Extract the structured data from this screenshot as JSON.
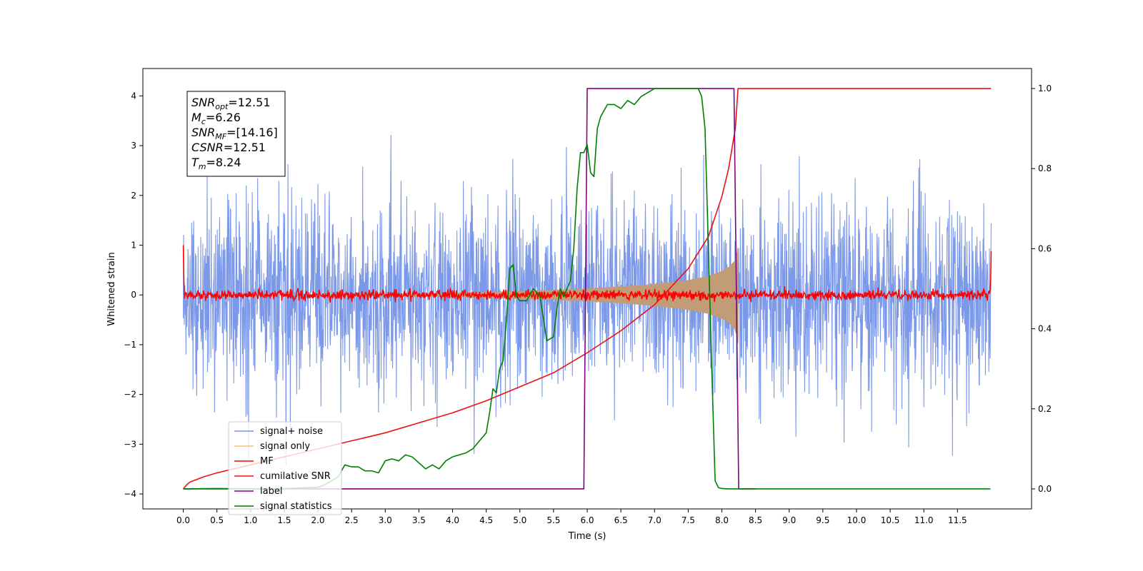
{
  "chart_data": {
    "type": "line",
    "xlabel": "Time (s)",
    "ylabel": "Whitened strain",
    "xlim": [
      -0.6,
      12.6
    ],
    "ylim": [
      -4.3,
      4.55
    ],
    "y2lim": [
      -0.05,
      1.05
    ],
    "x_ticks": [
      0.0,
      0.5,
      1.0,
      1.5,
      2.0,
      2.5,
      3.0,
      3.5,
      4.0,
      4.5,
      5.0,
      5.5,
      6.0,
      6.5,
      7.0,
      7.5,
      8.0,
      8.5,
      9.0,
      9.5,
      10.0,
      10.5,
      11.0,
      11.5
    ],
    "x_tick_labels": [
      "0.0",
      "0.5",
      "1.0",
      "1.5",
      "2.0",
      "2.5",
      "3.0",
      "3.5",
      "4.0",
      "4.5",
      "5.0",
      "5.5",
      "6.0",
      "6.5",
      "7.0",
      "7.5",
      "8.0",
      "8.5",
      "9.0",
      "9.5",
      "10.0",
      "10.5",
      "11.0",
      "11.5"
    ],
    "y_ticks": [
      -4,
      -3,
      -2,
      -1,
      0,
      1,
      2,
      3,
      4
    ],
    "y_tick_labels": [
      "−4",
      "−3",
      "−2",
      "−1",
      "0",
      "1",
      "2",
      "3",
      "4"
    ],
    "y2_ticks": [
      0.0,
      0.2,
      0.4,
      0.6,
      0.8,
      1.0
    ],
    "y2_tick_labels": [
      "0.0",
      "0.2",
      "0.4",
      "0.6",
      "0.8",
      "1.0"
    ],
    "grid": false,
    "legend_placement": "lower-left",
    "annotations": [
      {
        "base": "SNR",
        "sub": "opt",
        "rest": "=12.51"
      },
      {
        "base": "M",
        "sub": "c",
        "rest": "=6.26"
      },
      {
        "base": "SNR",
        "sub": "MF",
        "rest": "=[14.16]"
      },
      {
        "base": "CSNR",
        "sub": "",
        "rest": "=12.51"
      },
      {
        "base": "T",
        "sub": "m",
        "rest": "=8.24"
      }
    ],
    "series": [
      {
        "name": "signal+ noise",
        "axis": "left",
        "color": "#7593e8",
        "description_type": "white-noise",
        "x_range": [
          0.0,
          12.0
        ],
        "approx_std": 1.0,
        "visible_min": -3.85,
        "visible_max": 4.1
      },
      {
        "name": "signal only",
        "axis": "left",
        "color": "#f6c27a",
        "fill_color": "#c19c77",
        "x": [
          0.0,
          2.0,
          3.0,
          4.0,
          5.0,
          5.5,
          6.0,
          6.5,
          7.0,
          7.5,
          7.8,
          8.0,
          8.1,
          8.2,
          8.24
        ],
        "amplitude": [
          0.0,
          0.01,
          0.02,
          0.04,
          0.08,
          0.1,
          0.13,
          0.17,
          0.22,
          0.3,
          0.38,
          0.48,
          0.56,
          0.7,
          1.0
        ]
      },
      {
        "name": "MF",
        "axis": "left",
        "color": "#ff0000",
        "description_type": "noise",
        "x_range": [
          0.0,
          12.0
        ],
        "approx_std": 0.05,
        "edge_values": [
          1.0,
          0.88
        ]
      },
      {
        "name": "cumilative SNR",
        "axis": "right",
        "color": "#ee1111",
        "x": [
          0.0,
          0.05,
          0.1,
          0.3,
          0.5,
          1.0,
          1.5,
          2.0,
          2.5,
          3.0,
          3.5,
          4.0,
          4.5,
          5.0,
          5.5,
          6.0,
          6.5,
          7.0,
          7.5,
          7.8,
          8.0,
          8.1,
          8.2,
          8.24,
          8.5,
          9.0,
          10.0,
          11.0,
          11.5,
          12.0
        ],
        "values": [
          0.0,
          0.01,
          0.017,
          0.03,
          0.04,
          0.06,
          0.08,
          0.1,
          0.12,
          0.14,
          0.165,
          0.19,
          0.22,
          0.255,
          0.29,
          0.34,
          0.395,
          0.46,
          0.55,
          0.63,
          0.73,
          0.8,
          0.9,
          1.0,
          1.0,
          1.0,
          1.0,
          1.0,
          1.0,
          1.0
        ]
      },
      {
        "name": "label",
        "axis": "right",
        "color": "#800080",
        "x": [
          0.0,
          5.95,
          5.95,
          6.0,
          8.18,
          8.25,
          8.25,
          8.5
        ],
        "values": [
          0.0,
          0.0,
          0.0,
          1.0,
          1.0,
          0.0,
          0.0,
          0.0
        ]
      },
      {
        "name": "signal statistics",
        "axis": "right",
        "color": "#008000",
        "x": [
          0.0,
          0.5,
          1.0,
          1.5,
          2.0,
          2.1,
          2.2,
          2.3,
          2.4,
          2.5,
          2.6,
          2.7,
          2.8,
          2.9,
          3.0,
          3.1,
          3.2,
          3.3,
          3.4,
          3.5,
          3.6,
          3.7,
          3.8,
          3.9,
          4.0,
          4.1,
          4.2,
          4.3,
          4.4,
          4.5,
          4.55,
          4.6,
          4.65,
          4.7,
          4.75,
          4.8,
          4.85,
          4.9,
          4.95,
          5.0,
          5.1,
          5.2,
          5.3,
          5.4,
          5.5,
          5.55,
          5.6,
          5.65,
          5.7,
          5.75,
          5.8,
          5.85,
          5.9,
          5.95,
          6.0,
          6.05,
          6.1,
          6.15,
          6.2,
          6.3,
          6.4,
          6.5,
          6.6,
          6.7,
          6.8,
          6.9,
          7.0,
          7.1,
          7.2,
          7.3,
          7.4,
          7.5,
          7.6,
          7.65,
          7.7,
          7.75,
          7.8,
          7.85,
          7.9,
          7.95,
          8.0,
          8.1,
          8.2,
          8.5,
          9.0,
          10.0,
          11.0,
          11.5,
          11.99
        ],
        "values": [
          0.0,
          0.001,
          0.0,
          0.001,
          0.004,
          0.01,
          0.02,
          0.03,
          0.06,
          0.055,
          0.055,
          0.045,
          0.045,
          0.04,
          0.07,
          0.075,
          0.07,
          0.085,
          0.08,
          0.065,
          0.05,
          0.06,
          0.05,
          0.07,
          0.08,
          0.085,
          0.09,
          0.1,
          0.12,
          0.14,
          0.19,
          0.25,
          0.24,
          0.3,
          0.32,
          0.42,
          0.55,
          0.56,
          0.48,
          0.47,
          0.47,
          0.5,
          0.48,
          0.37,
          0.38,
          0.45,
          0.5,
          0.48,
          0.5,
          0.52,
          0.6,
          0.75,
          0.84,
          0.84,
          0.86,
          0.79,
          0.78,
          0.9,
          0.93,
          0.96,
          0.96,
          0.95,
          0.97,
          0.96,
          0.98,
          0.99,
          1.0,
          1.0,
          1.0,
          1.0,
          1.0,
          1.0,
          1.0,
          1.0,
          0.98,
          0.9,
          0.6,
          0.3,
          0.02,
          0.003,
          0.001,
          0.0,
          0.0,
          0.0,
          0.0,
          0.0,
          0.0,
          0.0,
          0.0
        ]
      }
    ]
  }
}
